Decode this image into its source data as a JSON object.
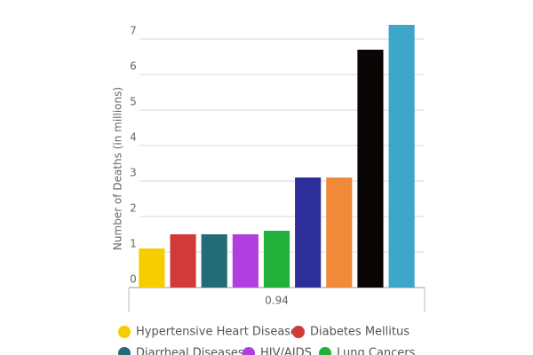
{
  "chart_data": {
    "type": "bar",
    "y_label": "Number of Deaths (in millions)",
    "categories": [
      "0.94"
    ],
    "series": [
      {
        "name": "Hypertensive Heart Disease",
        "color": "#f5cd00",
        "values": [
          1.1
        ]
      },
      {
        "name": "Diabetes Mellitus",
        "color": "#d13a3a",
        "values": [
          1.5
        ]
      },
      {
        "name": "Diarrheal Diseases",
        "color": "#246b78",
        "values": [
          1.5
        ]
      },
      {
        "name": "HIV/AIDS",
        "color": "#b13fe0",
        "values": [
          1.5
        ]
      },
      {
        "name": "Lung Cancers",
        "color": "#23b03a",
        "values": [
          1.6
        ]
      },
      {
        "color": "#2e2e9a",
        "values": [
          3.1
        ]
      },
      {
        "color": "#f08a3a",
        "values": [
          3.1
        ]
      },
      {
        "color": "#0a0505",
        "values": [
          6.7
        ]
      },
      {
        "color": "#3ea6c8",
        "values": [
          7.4
        ]
      }
    ],
    "ylim": [
      0,
      7.5
    ],
    "yticks": [
      0,
      1,
      2,
      3,
      4,
      5,
      6,
      7
    ],
    "grid": true
  }
}
